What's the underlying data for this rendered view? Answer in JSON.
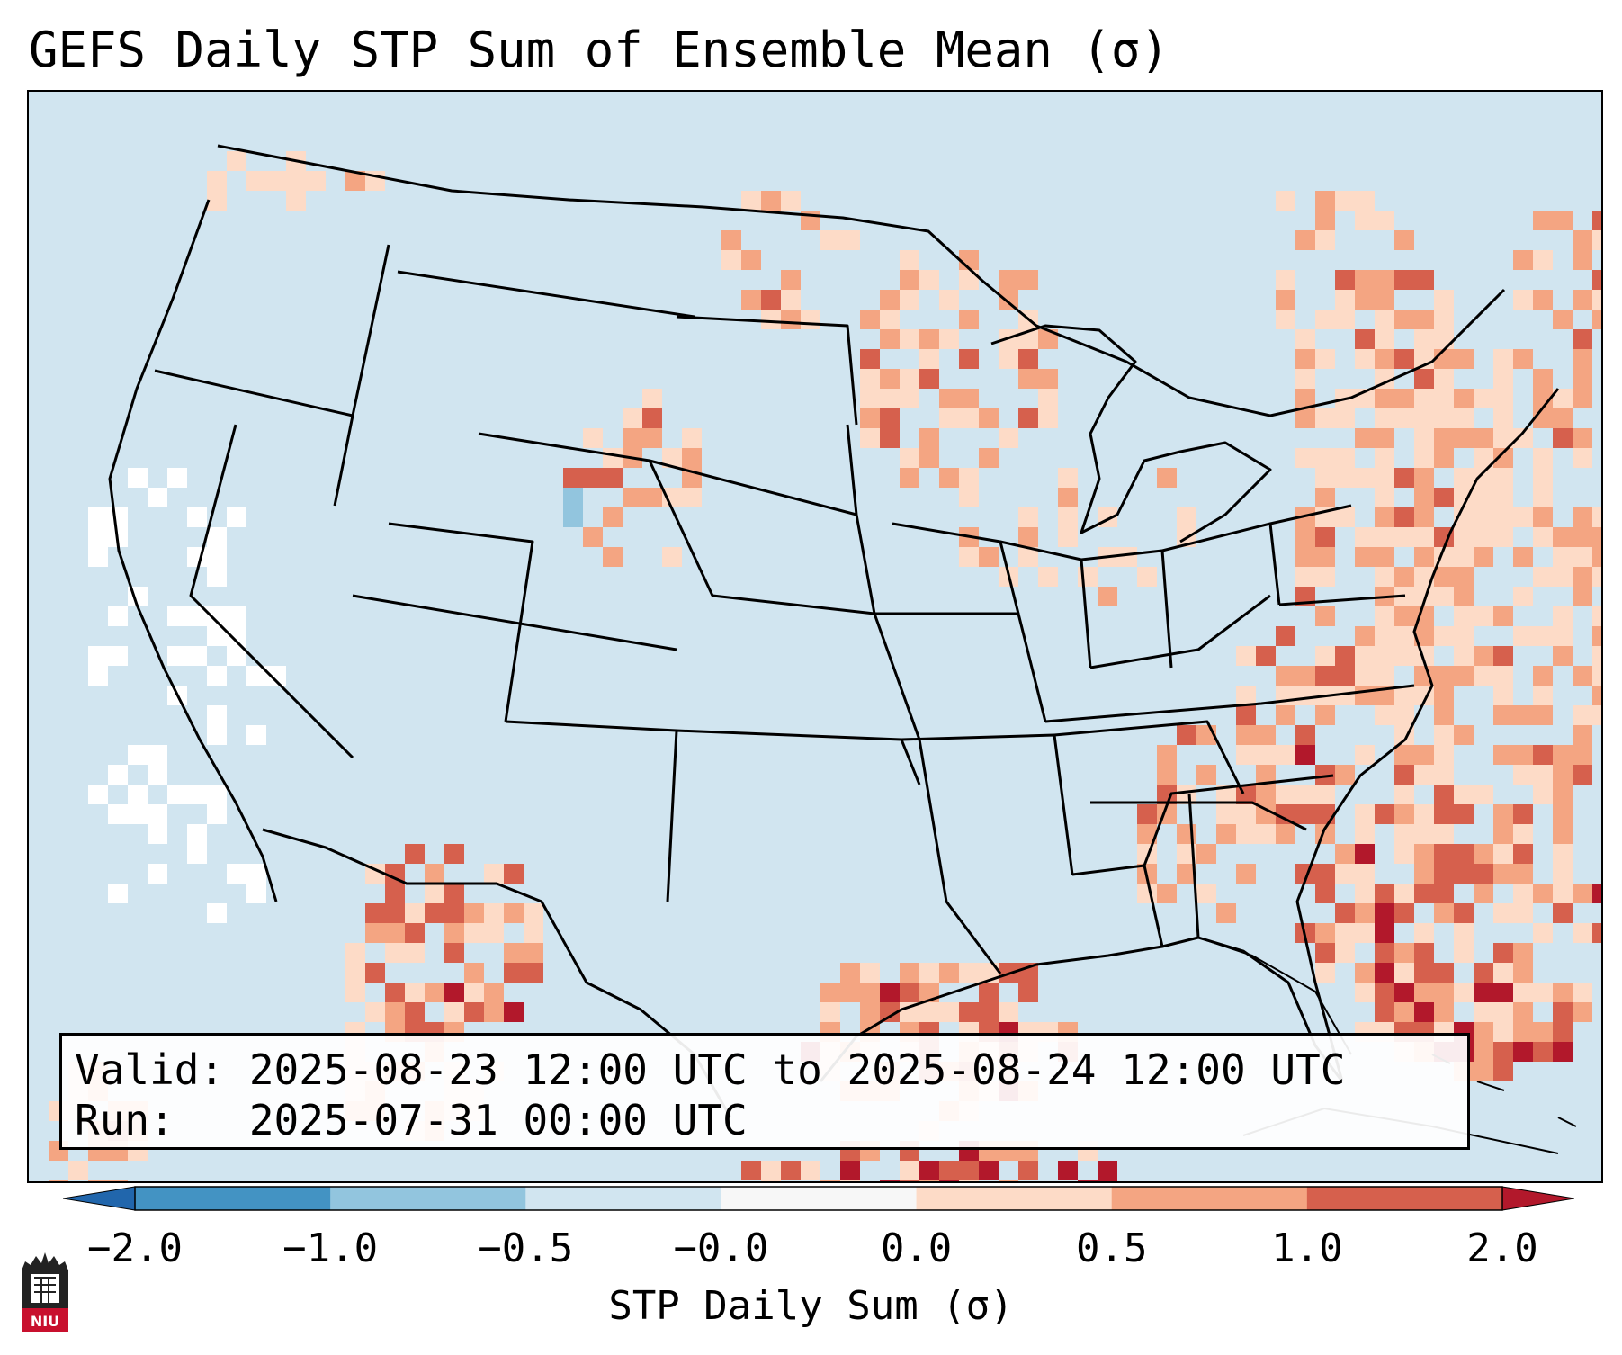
{
  "title": "GEFS Daily STP Sum of Ensemble Mean (σ)",
  "info": {
    "valid_line": "Valid: 2025-08-23 12:00 UTC to 2025-08-24 12:00 UTC",
    "run_line": "Run:   2025-07-31 00:00 UTC"
  },
  "colorbar": {
    "label": "STP Daily Sum (σ)",
    "ticks": [
      "−2.0",
      "−1.0",
      "−0.5",
      "−0.0",
      "0.0",
      "0.5",
      "1.0",
      "2.0"
    ],
    "bin_colors": [
      "#4393c3",
      "#92c5de",
      "#d1e5f0",
      "#f7f7f7",
      "#fddbc7",
      "#f4a582",
      "#d6604d"
    ],
    "under_color": "#2166ac",
    "over_color": "#b2182b"
  },
  "map": {
    "region": "Contiguous United States",
    "background_color": "#d1e5f0",
    "field_colors": {
      "light": "#fddbc7",
      "medium": "#f4a582",
      "strong": "#d6604d",
      "extreme": "#b2182b",
      "white": "#ffffff",
      "negative": "#92c5de"
    }
  },
  "logo": {
    "text": "NIU"
  }
}
